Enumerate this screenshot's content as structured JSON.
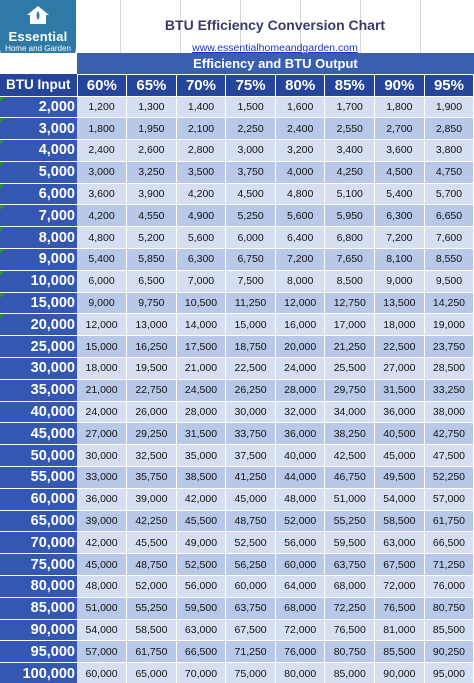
{
  "logo": {
    "main": "Essential",
    "sub": "Home and Garden"
  },
  "title": "BTU Efficiency Conversion Chart",
  "url": "www.essentialhomeandgarden.com",
  "band_label": "Efficiency and BTU Output",
  "header": {
    "input_label": "BTU Input",
    "efficiencies": [
      "60%",
      "65%",
      "70%",
      "75%",
      "80%",
      "85%",
      "90%",
      "95%"
    ]
  },
  "colors": {
    "logo": "#2f79a6",
    "band": "#3a5fb0",
    "header": "#24459a",
    "input_column": "#3458b2",
    "row_light": "#d6dff1",
    "row_dark": "#b9c8e9",
    "title": "#3a3a6a",
    "link": "#1a35c9"
  },
  "icons": {
    "logo": "house-icon",
    "cell_marker": "green-triangle-icon"
  },
  "rows": [
    {
      "input": "2,000",
      "values": [
        "1,200",
        "1,300",
        "1,400",
        "1,500",
        "1,600",
        "1,700",
        "1,800",
        "1,900"
      ]
    },
    {
      "input": "3,000",
      "values": [
        "1,800",
        "1,950",
        "2,100",
        "2,250",
        "2,400",
        "2,550",
        "2,700",
        "2,850"
      ]
    },
    {
      "input": "4,000",
      "values": [
        "2,400",
        "2,600",
        "2,800",
        "3,000",
        "3,200",
        "3,400",
        "3,600",
        "3,800"
      ]
    },
    {
      "input": "5,000",
      "values": [
        "3,000",
        "3,250",
        "3,500",
        "3,750",
        "4,000",
        "4,250",
        "4,500",
        "4,750"
      ]
    },
    {
      "input": "6,000",
      "values": [
        "3,600",
        "3,900",
        "4,200",
        "4,500",
        "4,800",
        "5,100",
        "5,400",
        "5,700"
      ]
    },
    {
      "input": "7,000",
      "values": [
        "4,200",
        "4,550",
        "4,900",
        "5,250",
        "5,600",
        "5,950",
        "6,300",
        "6,650"
      ]
    },
    {
      "input": "8,000",
      "values": [
        "4,800",
        "5,200",
        "5,600",
        "6,000",
        "6,400",
        "6,800",
        "7,200",
        "7,600"
      ]
    },
    {
      "input": "9,000",
      "values": [
        "5,400",
        "5,850",
        "6,300",
        "6,750",
        "7,200",
        "7,650",
        "8,100",
        "8,550"
      ]
    },
    {
      "input": "10,000",
      "values": [
        "6,000",
        "6,500",
        "7,000",
        "7,500",
        "8,000",
        "8,500",
        "9,000",
        "9,500"
      ]
    },
    {
      "input": "15,000",
      "values": [
        "9,000",
        "9,750",
        "10,500",
        "11,250",
        "12,000",
        "12,750",
        "13,500",
        "14,250"
      ]
    },
    {
      "input": "20,000",
      "values": [
        "12,000",
        "13,000",
        "14,000",
        "15,000",
        "16,000",
        "17,000",
        "18,000",
        "19,000"
      ]
    },
    {
      "input": "25,000",
      "values": [
        "15,000",
        "16,250",
        "17,500",
        "18,750",
        "20,000",
        "21,250",
        "22,500",
        "23,750"
      ]
    },
    {
      "input": "30,000",
      "values": [
        "18,000",
        "19,500",
        "21,000",
        "22,500",
        "24,000",
        "25,500",
        "27,000",
        "28,500"
      ]
    },
    {
      "input": "35,000",
      "values": [
        "21,000",
        "22,750",
        "24,500",
        "26,250",
        "28,000",
        "29,750",
        "31,500",
        "33,250"
      ]
    },
    {
      "input": "40,000",
      "values": [
        "24,000",
        "26,000",
        "28,000",
        "30,000",
        "32,000",
        "34,000",
        "36,000",
        "38,000"
      ]
    },
    {
      "input": "45,000",
      "values": [
        "27,000",
        "29,250",
        "31,500",
        "33,750",
        "36,000",
        "38,250",
        "40,500",
        "42,750"
      ]
    },
    {
      "input": "50,000",
      "values": [
        "30,000",
        "32,500",
        "35,000",
        "37,500",
        "40,000",
        "42,500",
        "45,000",
        "47,500"
      ]
    },
    {
      "input": "55,000",
      "values": [
        "33,000",
        "35,750",
        "38,500",
        "41,250",
        "44,000",
        "46,750",
        "49,500",
        "52,250"
      ]
    },
    {
      "input": "60,000",
      "values": [
        "36,000",
        "39,000",
        "42,000",
        "45,000",
        "48,000",
        "51,000",
        "54,000",
        "57,000"
      ]
    },
    {
      "input": "65,000",
      "values": [
        "39,000",
        "42,250",
        "45,500",
        "48,750",
        "52,000",
        "55,250",
        "58,500",
        "61,750"
      ]
    },
    {
      "input": "70,000",
      "values": [
        "42,000",
        "45,500",
        "49,000",
        "52,500",
        "56,000",
        "59,500",
        "63,000",
        "66,500"
      ]
    },
    {
      "input": "75,000",
      "values": [
        "45,000",
        "48,750",
        "52,500",
        "56,250",
        "60,000",
        "63,750",
        "67,500",
        "71,250"
      ]
    },
    {
      "input": "80,000",
      "values": [
        "48,000",
        "52,000",
        "56,000",
        "60,000",
        "64,000",
        "68,000",
        "72,000",
        "76,000"
      ]
    },
    {
      "input": "85,000",
      "values": [
        "51,000",
        "55,250",
        "59,500",
        "63,750",
        "68,000",
        "72,250",
        "76,500",
        "80,750"
      ]
    },
    {
      "input": "90,000",
      "values": [
        "54,000",
        "58,500",
        "63,000",
        "67,500",
        "72,000",
        "76,500",
        "81,000",
        "85,500"
      ]
    },
    {
      "input": "95,000",
      "values": [
        "57,000",
        "61,750",
        "66,500",
        "71,250",
        "76,000",
        "80,750",
        "85,500",
        "90,250"
      ]
    },
    {
      "input": "100,000",
      "values": [
        "60,000",
        "65,000",
        "70,000",
        "75,000",
        "80,000",
        "85,000",
        "90,000",
        "95,000"
      ]
    }
  ]
}
